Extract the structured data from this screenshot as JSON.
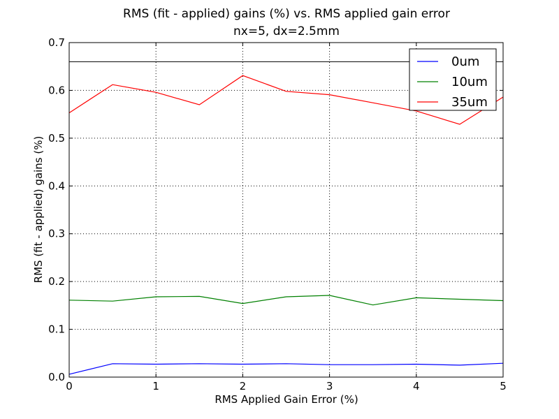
{
  "chart_data": {
    "type": "line",
    "title": "RMS (fit - applied) gains (%) vs. RMS applied gain error",
    "subtitle": "nx=5, dx=2.5mm",
    "xlabel": "RMS Applied Gain Error (%)",
    "ylabel": "RMS (fit - applied) gains (%)",
    "xlim": [
      0,
      5
    ],
    "ylim": [
      0,
      0.7
    ],
    "xticks": [
      "0",
      "1",
      "2",
      "3",
      "4",
      "5"
    ],
    "yticks": [
      "0.0",
      "0.1",
      "0.2",
      "0.3",
      "0.4",
      "0.5",
      "0.6",
      "0.7"
    ],
    "grid": true,
    "grid_style": "dotted",
    "legend_position": "top-right",
    "reference_line_y": 0.66,
    "x": [
      0,
      0.5,
      1.0,
      1.5,
      2.0,
      2.5,
      3.0,
      3.5,
      4.0,
      4.5,
      5.0
    ],
    "series": [
      {
        "name": "0um",
        "color": "#0000ff",
        "values": [
          0.006,
          0.028,
          0.027,
          0.028,
          0.027,
          0.028,
          0.026,
          0.026,
          0.027,
          0.025,
          0.029
        ]
      },
      {
        "name": "10um",
        "color": "#008000",
        "values": [
          0.161,
          0.159,
          0.168,
          0.169,
          0.154,
          0.168,
          0.171,
          0.151,
          0.166,
          0.163,
          0.16
        ]
      },
      {
        "name": "35um",
        "color": "#ff0000",
        "values": [
          0.553,
          0.612,
          0.596,
          0.57,
          0.631,
          0.598,
          0.591,
          0.574,
          0.557,
          0.529,
          0.586
        ]
      }
    ]
  }
}
